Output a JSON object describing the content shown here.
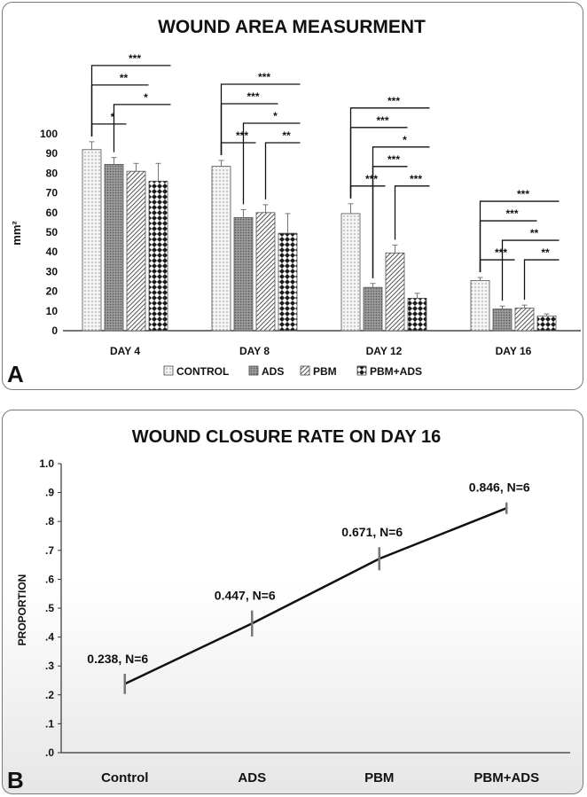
{
  "chart_data": [
    {
      "type": "bar",
      "panel_letter": "A",
      "title": "WOUND AREA MEASURMENT",
      "ylabel": "mm²",
      "ylim": [
        0,
        100
      ],
      "yticks": [
        0,
        10,
        20,
        30,
        40,
        50,
        60,
        70,
        80,
        90,
        100
      ],
      "categories": [
        "DAY 4",
        "DAY 8",
        "DAY 12",
        "DAY 16"
      ],
      "series": [
        {
          "name": "CONTROL",
          "values": [
            92,
            83.5,
            59.5,
            25.5
          ],
          "errors": [
            4,
            3,
            5,
            1.5
          ],
          "pattern": "dots"
        },
        {
          "name": "ADS",
          "values": [
            84.5,
            57.5,
            22,
            11
          ],
          "errors": [
            3.5,
            4,
            2,
            1.5
          ],
          "pattern": "dense"
        },
        {
          "name": "PBM",
          "values": [
            81,
            60,
            39.5,
            11.5
          ],
          "errors": [
            4,
            4,
            4,
            1.5
          ],
          "pattern": "hatch"
        },
        {
          "name": "PBM+ADS",
          "values": [
            76,
            49.5,
            16.5,
            7.5
          ],
          "errors": [
            9,
            10,
            2.5,
            1
          ],
          "pattern": "checker"
        }
      ],
      "legend_position": "bottom",
      "significance": [
        {
          "group": 0,
          "from": 0,
          "to": 1,
          "label": "*"
        },
        {
          "group": 0,
          "from": 0,
          "to": 2,
          "label": "**"
        },
        {
          "group": 0,
          "from": 0,
          "to": 3,
          "label": "***"
        },
        {
          "group": 0,
          "from": 1,
          "to": 3,
          "label": "*"
        },
        {
          "group": 1,
          "from": 0,
          "to": 1,
          "label": "***"
        },
        {
          "group": 1,
          "from": 0,
          "to": 2,
          "label": "***"
        },
        {
          "group": 1,
          "from": 0,
          "to": 3,
          "label": "***"
        },
        {
          "group": 1,
          "from": 1,
          "to": 3,
          "label": "*"
        },
        {
          "group": 1,
          "from": 2,
          "to": 3,
          "label": "**"
        },
        {
          "group": 2,
          "from": 0,
          "to": 1,
          "label": "***"
        },
        {
          "group": 2,
          "from": 0,
          "to": 2,
          "label": "***"
        },
        {
          "group": 2,
          "from": 0,
          "to": 3,
          "label": "***"
        },
        {
          "group": 2,
          "from": 1,
          "to": 2,
          "label": "***"
        },
        {
          "group": 2,
          "from": 1,
          "to": 3,
          "label": "*"
        },
        {
          "group": 2,
          "from": 2,
          "to": 3,
          "label": "***"
        },
        {
          "group": 3,
          "from": 0,
          "to": 1,
          "label": "***"
        },
        {
          "group": 3,
          "from": 0,
          "to": 2,
          "label": "***"
        },
        {
          "group": 3,
          "from": 0,
          "to": 3,
          "label": "***"
        },
        {
          "group": 3,
          "from": 1,
          "to": 3,
          "label": "**"
        },
        {
          "group": 3,
          "from": 2,
          "to": 3,
          "label": "**"
        }
      ]
    },
    {
      "type": "line",
      "panel_letter": "B",
      "title": "WOUND CLOSURE RATE ON DAY 16",
      "ylabel": "PROPORTION",
      "ylim": [
        0,
        1
      ],
      "yticks": [
        ".0",
        ".1",
        ".2",
        ".3",
        ".4",
        ".5",
        ".6",
        ".7",
        ".8",
        ".9",
        "1.0"
      ],
      "categories": [
        "Control",
        "ADS",
        "PBM",
        "PBM+ADS"
      ],
      "values": [
        0.238,
        0.447,
        0.671,
        0.846
      ],
      "errors": [
        0.035,
        0.045,
        0.04,
        0.02
      ],
      "data_labels": [
        "0.238, N=6",
        "0.447, N=6",
        "0.671, N=6",
        "0.846, N=6"
      ],
      "grid": false
    }
  ]
}
